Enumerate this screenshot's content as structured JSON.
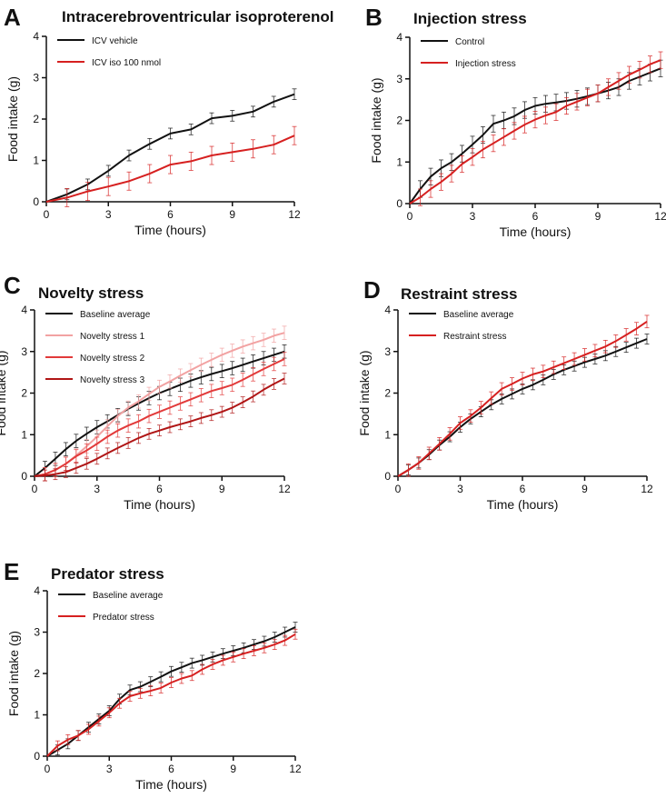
{
  "chart_data": [
    {
      "panel": "A",
      "type": "line",
      "title": "Intracerebroventricular isoproterenol",
      "xlabel": "Time (hours)",
      "ylabel": "Food intake (g)",
      "xlim": [
        0,
        12
      ],
      "ylim": [
        0,
        4
      ],
      "xticks": [
        0,
        3,
        6,
        9,
        12
      ],
      "yticks": [
        0,
        1,
        2,
        3,
        4
      ],
      "legend_position": "top-left",
      "series": [
        {
          "name": "ICV vehicle",
          "color": "#111111",
          "err": 0.13,
          "x": [
            0,
            1,
            2,
            3,
            4,
            5,
            6,
            7,
            8,
            9,
            10,
            11,
            12
          ],
          "y": [
            0,
            0.18,
            0.42,
            0.75,
            1.12,
            1.4,
            1.65,
            1.75,
            2.02,
            2.08,
            2.18,
            2.42,
            2.6
          ]
        },
        {
          "name": "ICV iso 100 nmol",
          "color": "#d62020",
          "err": 0.22,
          "x": [
            0,
            1,
            2,
            3,
            4,
            5,
            6,
            7,
            8,
            9,
            10,
            11,
            12
          ],
          "y": [
            0,
            0.1,
            0.25,
            0.37,
            0.5,
            0.68,
            0.9,
            0.98,
            1.12,
            1.2,
            1.28,
            1.38,
            1.6
          ]
        }
      ]
    },
    {
      "panel": "B",
      "type": "line",
      "title": "Injection stress",
      "xlabel": "Time (hours)",
      "ylabel": "Food intake (g)",
      "xlim": [
        0,
        12
      ],
      "ylim": [
        0,
        4
      ],
      "xticks": [
        0,
        3,
        6,
        9,
        12
      ],
      "yticks": [
        0,
        1,
        2,
        3,
        4
      ],
      "legend_position": "top-left",
      "series": [
        {
          "name": "Control",
          "color": "#111111",
          "err": 0.2,
          "x": [
            0,
            0.5,
            1,
            1.5,
            2,
            2.5,
            3,
            3.5,
            4,
            4.5,
            5,
            5.5,
            6,
            6.5,
            7,
            7.5,
            8,
            8.5,
            9,
            9.5,
            10,
            10.5,
            11,
            11.5,
            12
          ],
          "y": [
            0,
            0.35,
            0.65,
            0.85,
            1.0,
            1.2,
            1.42,
            1.65,
            1.92,
            2.0,
            2.1,
            2.25,
            2.35,
            2.4,
            2.43,
            2.47,
            2.52,
            2.58,
            2.65,
            2.72,
            2.8,
            2.95,
            3.05,
            3.15,
            3.25
          ]
        },
        {
          "name": "Injection stress",
          "color": "#d62020",
          "err": 0.2,
          "x": [
            0,
            0.5,
            1,
            1.5,
            2,
            2.5,
            3,
            3.5,
            4,
            4.5,
            5,
            5.5,
            6,
            6.5,
            7,
            7.5,
            8,
            8.5,
            9,
            9.5,
            10,
            10.5,
            11,
            11.5,
            12
          ],
          "y": [
            0,
            0.15,
            0.35,
            0.52,
            0.72,
            0.95,
            1.12,
            1.3,
            1.45,
            1.6,
            1.75,
            1.9,
            2.02,
            2.12,
            2.2,
            2.35,
            2.45,
            2.55,
            2.65,
            2.8,
            2.95,
            3.1,
            3.22,
            3.35,
            3.45
          ]
        }
      ]
    },
    {
      "panel": "C",
      "type": "line",
      "title": "Novelty stress",
      "xlabel": "Time (hours)",
      "ylabel": "Food intake (g)",
      "xlim": [
        0,
        12
      ],
      "ylim": [
        0,
        4
      ],
      "xticks": [
        0,
        3,
        6,
        9,
        12
      ],
      "yticks": [
        0,
        1,
        2,
        3,
        4
      ],
      "legend_position": "top-left",
      "series": [
        {
          "name": "Baseline average",
          "color": "#111111",
          "err": 0.16,
          "x": [
            0,
            0.5,
            1,
            1.5,
            2,
            2.5,
            3,
            3.5,
            4,
            4.5,
            5,
            5.5,
            6,
            6.5,
            7,
            7.5,
            8,
            8.5,
            9,
            9.5,
            10,
            10.5,
            11,
            11.5,
            12
          ],
          "y": [
            0,
            0.2,
            0.42,
            0.65,
            0.85,
            1.02,
            1.18,
            1.32,
            1.47,
            1.62,
            1.75,
            1.88,
            2.0,
            2.1,
            2.2,
            2.3,
            2.38,
            2.46,
            2.53,
            2.6,
            2.68,
            2.76,
            2.84,
            2.92,
            3.0
          ]
        },
        {
          "name": "Novelty stress 1",
          "color": "#f2a2a2",
          "err": 0.16,
          "x": [
            0,
            0.5,
            1,
            1.5,
            2,
            2.5,
            3,
            3.5,
            4,
            4.5,
            5,
            5.5,
            6,
            6.5,
            7,
            7.5,
            8,
            8.5,
            9,
            9.5,
            10,
            10.5,
            11,
            11.5,
            12
          ],
          "y": [
            0,
            0.05,
            0.15,
            0.3,
            0.5,
            0.72,
            0.95,
            1.2,
            1.45,
            1.65,
            1.8,
            1.98,
            2.15,
            2.28,
            2.42,
            2.55,
            2.68,
            2.8,
            2.92,
            3.02,
            3.12,
            3.2,
            3.28,
            3.38,
            3.45
          ]
        },
        {
          "name": "Novelty stress 2",
          "color": "#e23a3a",
          "err": 0.16,
          "x": [
            0,
            0.5,
            1,
            1.5,
            2,
            2.5,
            3,
            3.5,
            4,
            4.5,
            5,
            5.5,
            6,
            6.5,
            7,
            7.5,
            8,
            8.5,
            9,
            9.5,
            10,
            10.5,
            11,
            11.5,
            12
          ],
          "y": [
            0,
            0.05,
            0.15,
            0.3,
            0.48,
            0.62,
            0.78,
            0.95,
            1.1,
            1.22,
            1.32,
            1.45,
            1.55,
            1.65,
            1.75,
            1.85,
            1.95,
            2.05,
            2.12,
            2.2,
            2.32,
            2.45,
            2.58,
            2.7,
            2.82
          ]
        },
        {
          "name": "Novelty stress 3",
          "color": "#b01515",
          "err": 0.13,
          "x": [
            0,
            0.5,
            1,
            1.5,
            2,
            2.5,
            3,
            3.5,
            4,
            4.5,
            5,
            5.5,
            6,
            6.5,
            7,
            7.5,
            8,
            8.5,
            9,
            9.5,
            10,
            10.5,
            11,
            11.5,
            12
          ],
          "y": [
            0,
            0.02,
            0.05,
            0.1,
            0.2,
            0.3,
            0.42,
            0.55,
            0.68,
            0.8,
            0.92,
            1.02,
            1.1,
            1.18,
            1.25,
            1.32,
            1.4,
            1.47,
            1.55,
            1.65,
            1.78,
            1.92,
            2.08,
            2.22,
            2.35
          ]
        }
      ]
    },
    {
      "panel": "D",
      "type": "line",
      "title": "Restraint stress",
      "xlabel": "Time (hours)",
      "ylabel": "Food intake (g)",
      "xlim": [
        0,
        12
      ],
      "ylim": [
        0,
        4
      ],
      "xticks": [
        0,
        3,
        6,
        9,
        12
      ],
      "yticks": [
        0,
        1,
        2,
        3,
        4
      ],
      "legend_position": "top-left",
      "series": [
        {
          "name": "Baseline average",
          "color": "#111111",
          "err": 0.12,
          "x": [
            0,
            0.5,
            1,
            1.5,
            2,
            2.5,
            3,
            3.5,
            4,
            4.5,
            5,
            5.5,
            6,
            6.5,
            7,
            7.5,
            8,
            8.5,
            9,
            9.5,
            10,
            10.5,
            11,
            11.5,
            12
          ],
          "y": [
            0,
            0.15,
            0.32,
            0.52,
            0.75,
            0.95,
            1.18,
            1.38,
            1.55,
            1.72,
            1.86,
            1.98,
            2.1,
            2.2,
            2.32,
            2.45,
            2.56,
            2.65,
            2.74,
            2.82,
            2.9,
            3.0,
            3.1,
            3.2,
            3.3
          ]
        },
        {
          "name": "Restraint stress",
          "color": "#d62020",
          "err": 0.15,
          "x": [
            0,
            0.5,
            1,
            1.5,
            2,
            2.5,
            3,
            3.5,
            4,
            4.5,
            5,
            5.5,
            6,
            6.5,
            7,
            7.5,
            8,
            8.5,
            9,
            9.5,
            10,
            10.5,
            11,
            11.5,
            12
          ],
          "y": [
            0,
            0.15,
            0.32,
            0.55,
            0.78,
            1.02,
            1.28,
            1.45,
            1.65,
            1.88,
            2.1,
            2.22,
            2.35,
            2.45,
            2.52,
            2.62,
            2.72,
            2.82,
            2.92,
            3.02,
            3.12,
            3.25,
            3.4,
            3.55,
            3.72
          ]
        }
      ]
    },
    {
      "panel": "E",
      "type": "line",
      "title": "Predator stress",
      "xlabel": "Time (hours)",
      "ylabel": "Food intake (g)",
      "xlim": [
        0,
        12
      ],
      "ylim": [
        0,
        4
      ],
      "xticks": [
        0,
        3,
        6,
        9,
        12
      ],
      "yticks": [
        0,
        1,
        2,
        3,
        4
      ],
      "legend_position": "top-left",
      "series": [
        {
          "name": "Baseline average",
          "color": "#111111",
          "err": 0.12,
          "x": [
            0,
            0.5,
            1,
            1.5,
            2,
            2.5,
            3,
            3.5,
            4,
            4.5,
            5,
            5.5,
            6,
            6.5,
            7,
            7.5,
            8,
            8.5,
            9,
            9.5,
            10,
            10.5,
            11,
            11.5,
            12
          ],
          "y": [
            0,
            0.15,
            0.3,
            0.5,
            0.7,
            0.9,
            1.1,
            1.38,
            1.6,
            1.68,
            1.8,
            1.92,
            2.05,
            2.15,
            2.25,
            2.32,
            2.4,
            2.48,
            2.55,
            2.62,
            2.7,
            2.78,
            2.88,
            3.0,
            3.12
          ]
        },
        {
          "name": "Predator stress",
          "color": "#d62020",
          "err": 0.12,
          "x": [
            0,
            0.5,
            1,
            1.5,
            2,
            2.5,
            3,
            3.5,
            4,
            4.5,
            5,
            5.5,
            6,
            6.5,
            7,
            7.5,
            8,
            8.5,
            9,
            9.5,
            10,
            10.5,
            11,
            11.5,
            12
          ],
          "y": [
            0,
            0.25,
            0.4,
            0.5,
            0.65,
            0.85,
            1.05,
            1.28,
            1.45,
            1.52,
            1.58,
            1.65,
            1.78,
            1.88,
            1.95,
            2.1,
            2.22,
            2.32,
            2.4,
            2.48,
            2.55,
            2.62,
            2.7,
            2.8,
            2.95
          ]
        }
      ]
    }
  ]
}
